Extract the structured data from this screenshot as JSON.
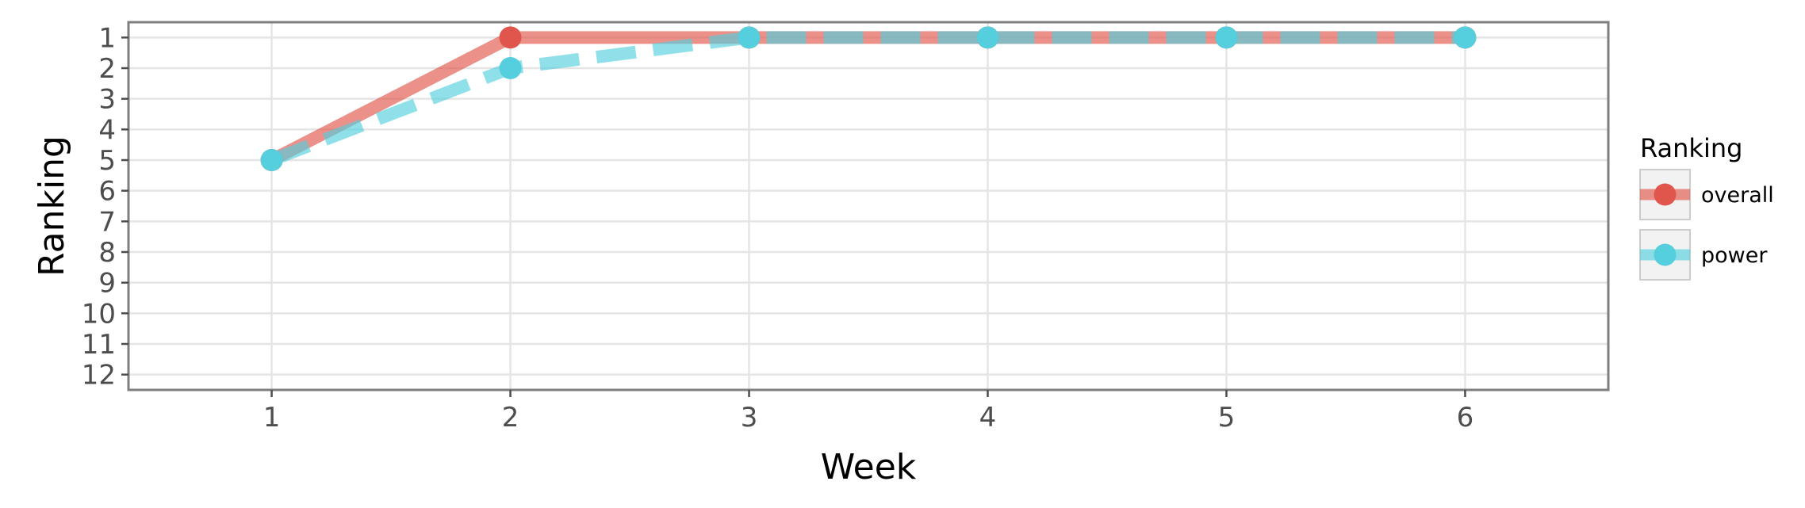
{
  "chart_data": {
    "type": "line",
    "xlabel": "Week",
    "ylabel": "Ranking",
    "x": [
      1,
      2,
      3,
      4,
      5,
      6
    ],
    "xlim": [
      0.4,
      6.6
    ],
    "ylim": [
      12.5,
      0.5
    ],
    "y_reversed": true,
    "x_ticks": [
      "1",
      "2",
      "3",
      "4",
      "5",
      "6"
    ],
    "y_ticks": [
      "1",
      "2",
      "3",
      "4",
      "5",
      "6",
      "7",
      "8",
      "9",
      "10",
      "11",
      "12"
    ],
    "grid": true,
    "legend": {
      "title": "Ranking",
      "position": "right"
    },
    "series": [
      {
        "name": "overall",
        "values": [
          5,
          1,
          1,
          1,
          1,
          1
        ],
        "color": "#E1564C",
        "line_style": "solid"
      },
      {
        "name": "power",
        "values": [
          5,
          2,
          1,
          1,
          1,
          1
        ],
        "color": "#55CFDD",
        "line_style": "dashed"
      }
    ]
  }
}
